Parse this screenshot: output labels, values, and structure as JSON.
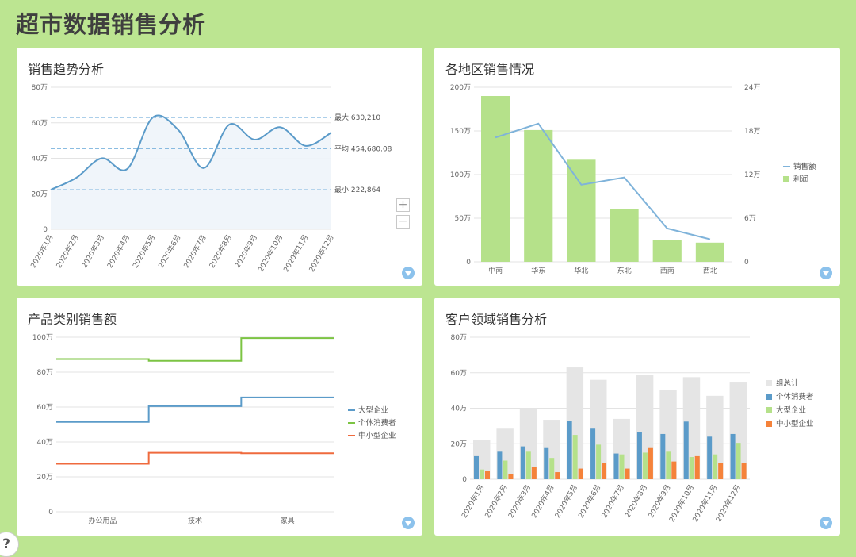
{
  "page_title": "超市数据销售分析",
  "help_label": "?",
  "colors": {
    "background": "#bce591",
    "blue": "#5b9bc9",
    "green": "#7cc443",
    "light_green": "#b5e18a",
    "orange": "#f5823a",
    "red": "#ef6a3d",
    "gray": "#e5e5e5",
    "dash": "#7ab2dd",
    "filter": "#8cc2ec"
  },
  "icons": {
    "filter": "filter-funnel-icon",
    "zoom_in": "plus-icon",
    "zoom_out": "minus-icon",
    "help": "question-mark-icon"
  },
  "zoom": {
    "in_label": "+",
    "out_label": "−"
  },
  "chart_data": [
    {
      "id": "trend",
      "type": "area",
      "title": "销售趋势分析",
      "x": [
        "2020年1月",
        "2020年2月",
        "2020年3月",
        "2020年4月",
        "2020年5月",
        "2020年6月",
        "2020年7月",
        "2020年8月",
        "2020年9月",
        "2020年10月",
        "2020年11月",
        "2020年12月"
      ],
      "values": [
        22.3,
        29,
        40,
        34,
        63,
        56,
        34.5,
        59,
        50.5,
        57.5,
        47,
        54.5
      ],
      "ylim": [
        0,
        80
      ],
      "yticks": [
        0,
        20,
        40,
        60,
        80
      ],
      "ytick_labels": [
        "0",
        "20万",
        "40万",
        "60万",
        "80万"
      ],
      "reference_lines": [
        {
          "label": "最大 630,210",
          "value": 63.021
        },
        {
          "label": "平均 454,680.08",
          "value": 45.468
        },
        {
          "label": "最小 222,864",
          "value": 22.2864
        }
      ],
      "grid": true
    },
    {
      "id": "region",
      "type": "bar",
      "title": "各地区销售情况",
      "categories": [
        "中南",
        "华东",
        "华北",
        "东北",
        "西南",
        "西北"
      ],
      "series": [
        {
          "name": "销售额",
          "type": "line",
          "axis": "right",
          "values": [
            17.1,
            19.0,
            10.6,
            11.6,
            4.6,
            3.1
          ]
        },
        {
          "name": "利润",
          "type": "bar",
          "axis": "left",
          "values": [
            190,
            151,
            117,
            60,
            25,
            22
          ]
        }
      ],
      "ylim_left": [
        0,
        200
      ],
      "ytick_labels_left": [
        "0",
        "50万",
        "100万",
        "150万",
        "200万"
      ],
      "ylim_right": [
        0,
        24
      ],
      "ytick_labels_right": [
        "0",
        "6万",
        "12万",
        "18万",
        "24万"
      ],
      "legend": "right",
      "grid": true
    },
    {
      "id": "category",
      "type": "line",
      "title": "产品类别销售额",
      "categories": [
        "办公用品",
        "技术",
        "家具"
      ],
      "series": [
        {
          "name": "大型企业",
          "values": [
            51.5,
            60.5,
            65.5
          ]
        },
        {
          "name": "个体消费者",
          "values": [
            87.5,
            86.5,
            99.5
          ]
        },
        {
          "name": "中小型企业",
          "values": [
            27.5,
            33.8,
            33.5
          ]
        }
      ],
      "ylim": [
        0,
        100
      ],
      "ytick_labels": [
        "0",
        "20万",
        "40万",
        "60万",
        "80万",
        "100万"
      ],
      "legend": "right",
      "grid": true
    },
    {
      "id": "customer",
      "type": "bar",
      "title": "客户领域销售分析",
      "categories": [
        "2020年1月",
        "2020年2月",
        "2020年3月",
        "2020年4月",
        "2020年5月",
        "2020年6月",
        "2020年7月",
        "2020年8月",
        "2020年9月",
        "2020年10月",
        "2020年11月",
        "2020年12月"
      ],
      "series": [
        {
          "name": "组总计",
          "values": [
            22,
            28.5,
            40,
            33.5,
            63,
            56,
            34,
            59,
            50.5,
            57.5,
            47,
            54.5
          ]
        },
        {
          "name": "个体消费者",
          "values": [
            13,
            15.5,
            18.5,
            18,
            33,
            28.5,
            14.5,
            26.5,
            25.5,
            32.5,
            24,
            25.5
          ]
        },
        {
          "name": "大型企业",
          "values": [
            5.5,
            10.5,
            15.5,
            12,
            25,
            19.5,
            14,
            15,
            15.5,
            12.5,
            14,
            20.5
          ]
        },
        {
          "name": "中小型企业",
          "values": [
            4.5,
            3,
            7,
            4,
            6,
            9,
            6,
            18,
            10,
            13,
            9,
            9
          ]
        }
      ],
      "ylim": [
        0,
        80
      ],
      "ytick_labels": [
        "0",
        "20万",
        "40万",
        "60万",
        "80万"
      ],
      "legend": "right",
      "grid": true
    }
  ]
}
